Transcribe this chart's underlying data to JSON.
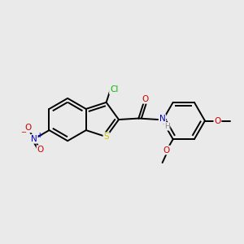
{
  "bg_color": "#eaeaea",
  "bond_color": "#000000",
  "bond_width": 1.4,
  "atom_colors": {
    "S": "#cccc00",
    "N_amide": "#0000cc",
    "N_nitro": "#0000cc",
    "O": "#cc0000",
    "Cl": "#00bb00",
    "H": "#888888",
    "C": "#000000"
  },
  "font_size": 7.5
}
